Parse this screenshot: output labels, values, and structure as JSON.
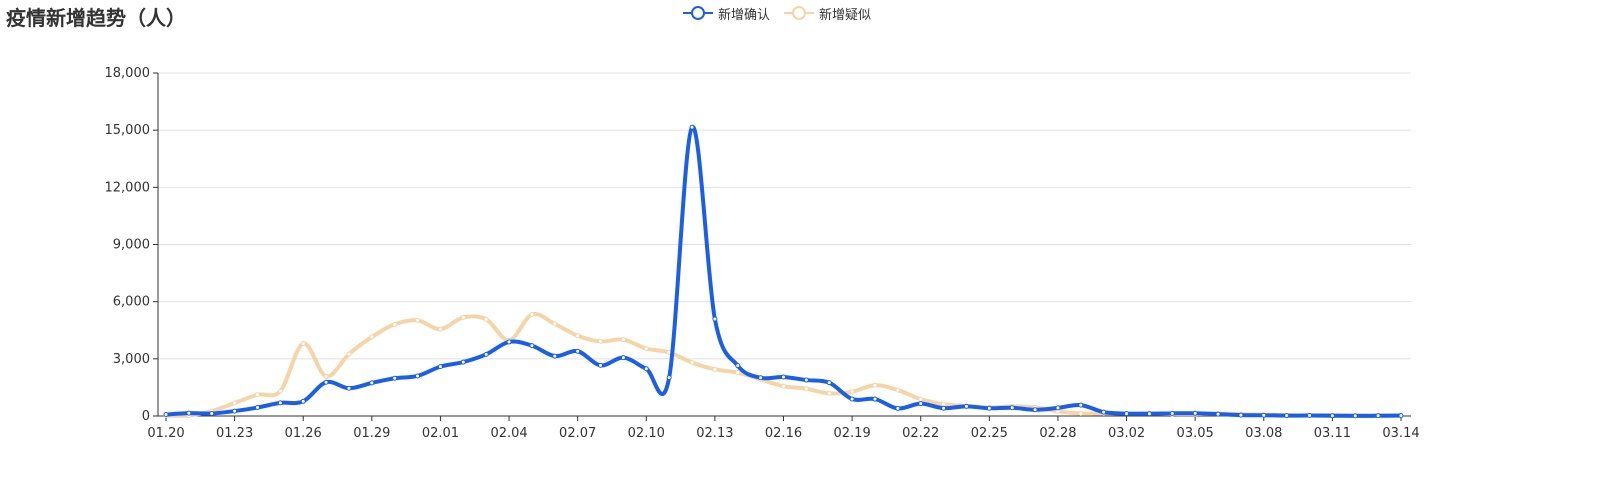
{
  "title": "疫情新增趋势（人）",
  "chart_data": {
    "type": "line",
    "title": "疫情新增趋势（人）",
    "xlabel": "",
    "ylabel": "",
    "smooth": true,
    "ylim": [
      0,
      18000
    ],
    "yticks": [
      "0",
      "3,000",
      "6,000",
      "9,000",
      "12,000",
      "15,000",
      "18,000"
    ],
    "ytick_values": [
      0,
      3000,
      6000,
      9000,
      12000,
      15000,
      18000
    ],
    "grid": true,
    "legend_position": "top-center",
    "xtick_labels": [
      "01.20",
      "01.23",
      "01.26",
      "01.29",
      "02.01",
      "02.04",
      "02.07",
      "02.10",
      "02.13",
      "02.16",
      "02.19",
      "02.22",
      "02.25",
      "02.28",
      "03.02",
      "03.05",
      "03.08",
      "03.11",
      "03.14"
    ],
    "x": [
      "01.20",
      "01.21",
      "01.22",
      "01.23",
      "01.24",
      "01.25",
      "01.26",
      "01.27",
      "01.28",
      "01.29",
      "01.30",
      "01.31",
      "02.01",
      "02.02",
      "02.03",
      "02.04",
      "02.05",
      "02.06",
      "02.07",
      "02.08",
      "02.09",
      "02.10",
      "02.11",
      "02.12",
      "02.13",
      "02.14",
      "02.15",
      "02.16",
      "02.17",
      "02.18",
      "02.19",
      "02.20",
      "02.21",
      "02.22",
      "02.23",
      "02.24",
      "02.25",
      "02.26",
      "02.27",
      "02.28",
      "02.29",
      "03.01",
      "03.02",
      "03.03",
      "03.04",
      "03.05",
      "03.06",
      "03.07",
      "03.08",
      "03.09",
      "03.10",
      "03.11",
      "03.12",
      "03.13",
      "03.14"
    ],
    "series": [
      {
        "name": "新增确认",
        "color": "#1b5fe8",
        "values": [
          77,
          149,
          131,
          259,
          444,
          688,
          769,
          1771,
          1459,
          1737,
          1982,
          2102,
          2590,
          2829,
          3235,
          3887,
          3694,
          3143,
          3399,
          2656,
          3062,
          2478,
          2015,
          15152,
          5090,
          2641,
          2008,
          2048,
          1886,
          1749,
          891,
          889,
          397,
          648,
          409,
          508,
          406,
          433,
          327,
          427,
          573,
          202,
          125,
          119,
          139,
          143,
          99,
          44,
          40,
          19,
          24,
          15,
          8,
          11,
          20
        ]
      },
      {
        "name": "新增疑似",
        "color": "#f5d4a6",
        "values": [
          27,
          26,
          257,
          680,
          1118,
          1309,
          3806,
          2077,
          3248,
          4148,
          4812,
          5019,
          4562,
          5173,
          5072,
          3971,
          5328,
          4833,
          4214,
          3916,
          4008,
          3536,
          3342,
          2807,
          2450,
          2277,
          1918,
          1563,
          1432,
          1185,
          1277,
          1614,
          1361,
          882,
          620,
          530,
          439,
          508,
          452,
          248,
          132,
          141,
          129,
          143,
          102,
          99,
          133,
          89,
          67,
          41,
          36,
          45,
          33,
          39,
          41
        ]
      }
    ]
  }
}
